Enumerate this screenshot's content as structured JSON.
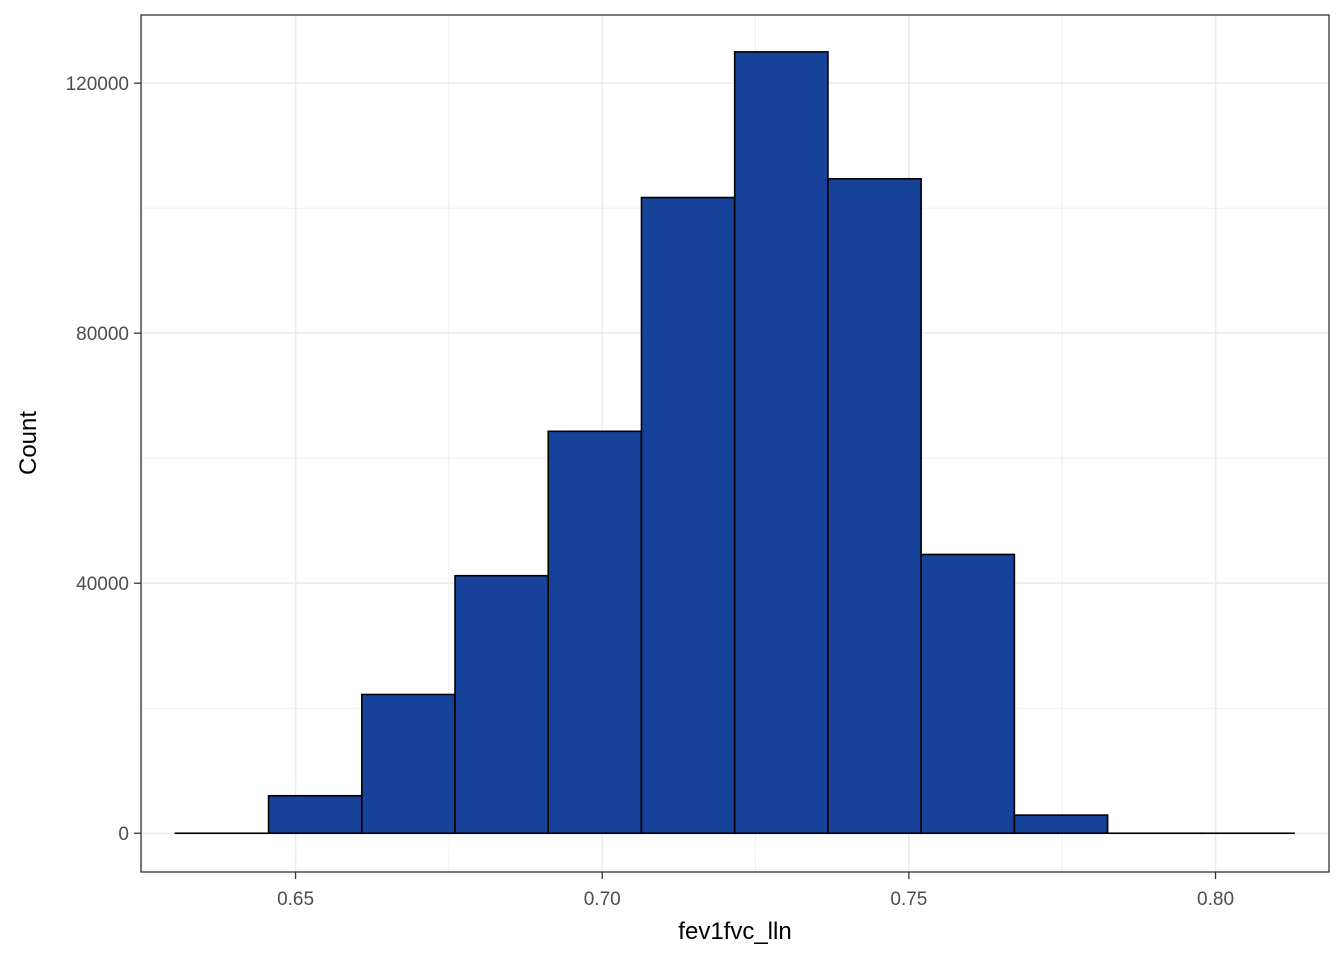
{
  "chart_data": {
    "type": "bar",
    "subtype": "histogram",
    "xlabel": "fev1fvc_lln",
    "ylabel": "Count",
    "xlim": [
      0.6248,
      0.8185
    ],
    "ylim": [
      -6200,
      130900
    ],
    "x_ticks": [
      0.65,
      0.7,
      0.75,
      0.8
    ],
    "x_tick_labels": [
      "0.65",
      "0.70",
      "0.75",
      "0.80"
    ],
    "y_ticks": [
      0,
      40000,
      80000,
      120000
    ],
    "y_tick_labels": [
      "0",
      "40000",
      "80000",
      "120000"
    ],
    "bins": [
      {
        "x0": 0.6304,
        "x1": 0.6456,
        "count": 0
      },
      {
        "x0": 0.6456,
        "x1": 0.6608,
        "count": 6000
      },
      {
        "x0": 0.6608,
        "x1": 0.676,
        "count": 22200
      },
      {
        "x0": 0.676,
        "x1": 0.6912,
        "count": 41200
      },
      {
        "x0": 0.6912,
        "x1": 0.7064,
        "count": 64300
      },
      {
        "x0": 0.7064,
        "x1": 0.7216,
        "count": 101700
      },
      {
        "x0": 0.7216,
        "x1": 0.7368,
        "count": 125000
      },
      {
        "x0": 0.7368,
        "x1": 0.752,
        "count": 104700
      },
      {
        "x0": 0.752,
        "x1": 0.7672,
        "count": 44600
      },
      {
        "x0": 0.7672,
        "x1": 0.7824,
        "count": 2900
      },
      {
        "x0": 0.7824,
        "x1": 0.7976,
        "count": 0
      },
      {
        "x0": 0.7976,
        "x1": 0.8128,
        "count": 0
      }
    ],
    "grid": true,
    "legend": "none",
    "colors": {
      "bar_fill": "#174299",
      "bar_outline": "#000000",
      "grid": "#ebebeb",
      "panel_border": "#333333",
      "tick_text": "#4d4d4d"
    }
  }
}
